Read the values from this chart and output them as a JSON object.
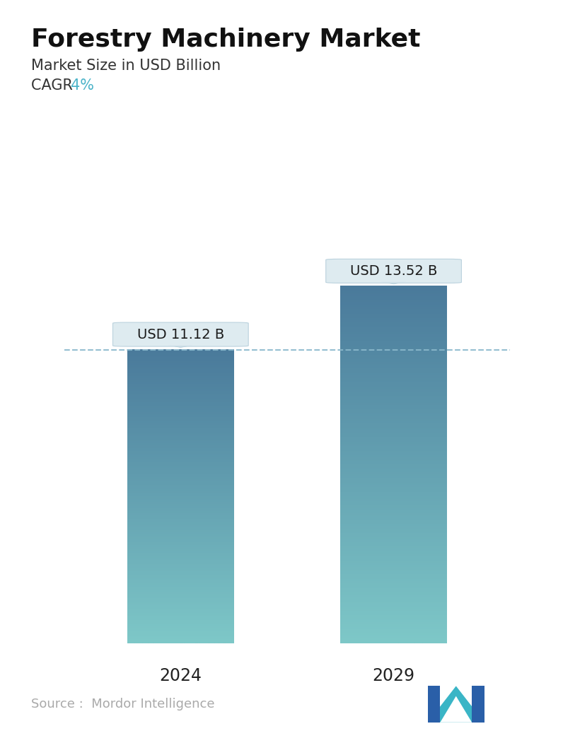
{
  "title": "Forestry Machinery Market",
  "subtitle": "Market Size in USD Billion",
  "cagr_label": "CAGR  ",
  "cagr_value": "4%",
  "cagr_color": "#4ab3c8",
  "categories": [
    "2024",
    "2029"
  ],
  "values": [
    11.12,
    13.52
  ],
  "bar_labels": [
    "USD 11.12 B",
    "USD 13.52 B"
  ],
  "bar_top_color": "#4a7a9b",
  "bar_bottom_color": "#7ec8c8",
  "dashed_line_color": "#8ab8cc",
  "dashed_line_y": 11.12,
  "source_text": "Source :  Mordor Intelligence",
  "source_color": "#aaaaaa",
  "background_color": "#ffffff",
  "title_fontsize": 26,
  "subtitle_fontsize": 15,
  "cagr_fontsize": 15,
  "bar_label_fontsize": 14,
  "axis_label_fontsize": 17,
  "source_fontsize": 13,
  "ylim": [
    0,
    15.5
  ],
  "bar_width": 0.22,
  "x_positions": [
    0.28,
    0.72
  ]
}
